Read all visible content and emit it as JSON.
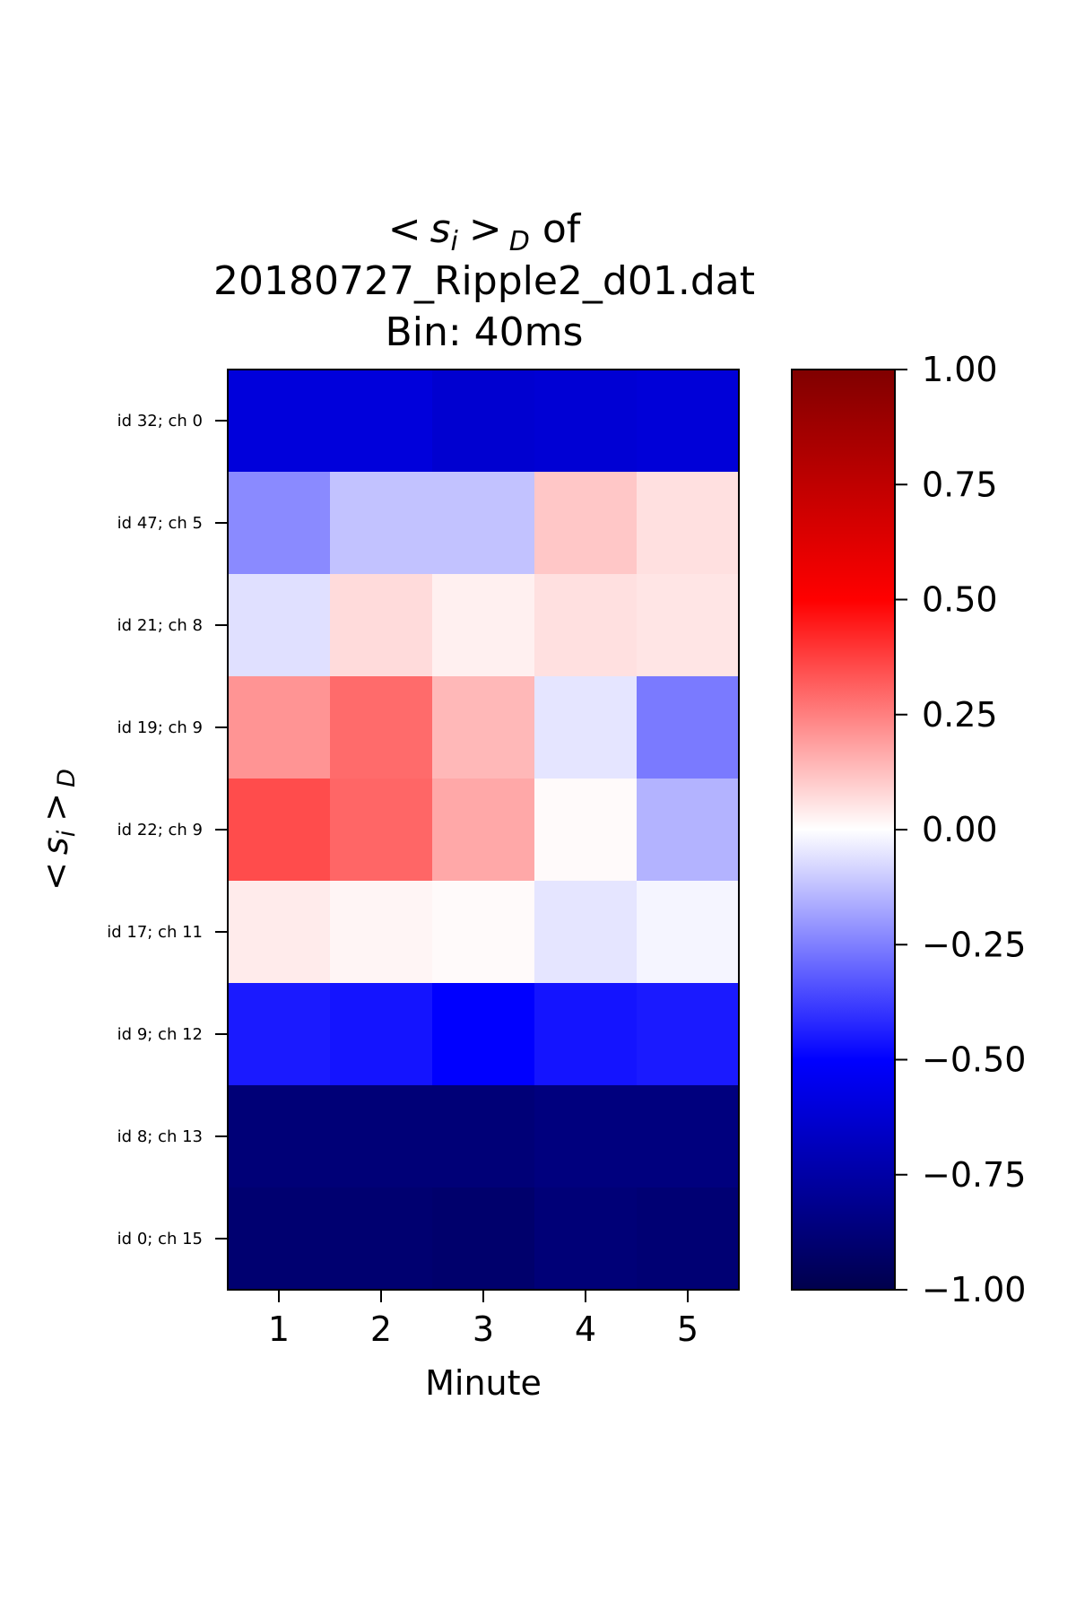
{
  "chart_data": {
    "type": "heatmap",
    "title": {
      "symbol": "s",
      "subscript_i": "i",
      "subscript_d": "D",
      "open": "<",
      "close": ">",
      "of_text": "of",
      "line2": "20180727_Ripple2_d01.dat",
      "line3": "Bin: 40ms"
    },
    "xlabel": "Minute",
    "ylabel": {
      "open": "<",
      "symbol": "s",
      "subscript_i": "i",
      "close": ">",
      "subscript_d": "D"
    },
    "x_categories": [
      "1",
      "2",
      "3",
      "4",
      "5"
    ],
    "y_categories": [
      "id 32; ch 0",
      "id 47; ch 5",
      "id 21; ch 8",
      "id 19; ch 9",
      "id 22; ch 9",
      "id 17; ch 11",
      "id 9; ch 12",
      "id 8; ch 13",
      "id 0; ch 15"
    ],
    "values": [
      [
        -0.6,
        -0.6,
        -0.63,
        -0.62,
        -0.61
      ],
      [
        -0.23,
        -0.12,
        -0.12,
        0.11,
        0.06
      ],
      [
        -0.06,
        0.07,
        0.03,
        0.06,
        0.05
      ],
      [
        0.21,
        0.29,
        0.14,
        -0.05,
        -0.26
      ],
      [
        0.35,
        0.3,
        0.17,
        0.01,
        -0.15
      ],
      [
        0.04,
        0.02,
        0.01,
        -0.05,
        -0.02
      ],
      [
        -0.45,
        -0.46,
        -0.5,
        -0.46,
        -0.45
      ],
      [
        -0.88,
        -0.88,
        -0.88,
        -0.86,
        -0.86
      ],
      [
        -0.9,
        -0.9,
        -0.91,
        -0.88,
        -0.89
      ]
    ],
    "colorbar": {
      "range": [
        -1.0,
        1.0
      ],
      "ticks": [
        1.0,
        0.75,
        0.5,
        0.25,
        0.0,
        -0.25,
        -0.5,
        -0.75,
        -1.0
      ],
      "tick_labels": [
        "1.00",
        "0.75",
        "0.50",
        "0.25",
        "0.00",
        "−0.25",
        "−0.50",
        "−0.75",
        "−1.00"
      ],
      "colormap": "seismic",
      "colormap_stops": [
        "#00004c",
        "#0000ff",
        "#ffffff",
        "#ff0000",
        "#800000"
      ]
    },
    "grid": false
  }
}
